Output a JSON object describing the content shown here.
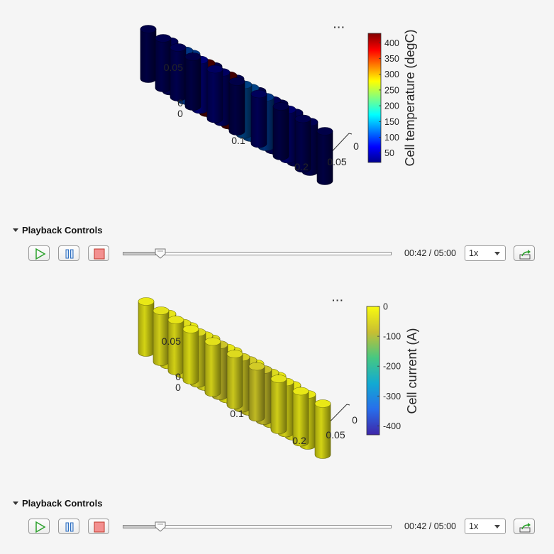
{
  "panels": [
    {
      "id": "temperature",
      "figure": {
        "more_icon": "ellipsis-icon",
        "z_ticks": [
          "0.05",
          "0"
        ],
        "x_ticks": [
          "0",
          "0.1",
          "0.2"
        ],
        "y_ticks": [
          "0",
          "0.05"
        ],
        "colorbar_label": "Cell temperature (degC)",
        "colorbar_ticks": [
          "400",
          "350",
          "300",
          "250",
          "200",
          "150",
          "100",
          "50"
        ],
        "colormap": "jet",
        "cell_values": [
          [
            20,
            30,
            25,
            20
          ],
          [
            40,
            60,
            110,
            30
          ],
          [
            20,
            40,
            430,
            110
          ],
          [
            35,
            120,
            430,
            20
          ],
          [
            20,
            110,
            120,
            25
          ],
          [
            25,
            50,
            30,
            20
          ],
          [
            20,
            30,
            25,
            20
          ]
        ]
      },
      "playback": {
        "header": "Playback Controls",
        "play_icon": "play-icon",
        "pause_icon": "pause-icon",
        "stop_icon": "stop-icon",
        "progress": 0.14,
        "time": "00:42 / 05:00",
        "speed": "1x",
        "export_icon": "export-icon"
      }
    },
    {
      "id": "current",
      "figure": {
        "more_icon": "ellipsis-icon",
        "z_ticks": [
          "0.05",
          "0"
        ],
        "x_ticks": [
          "0",
          "0.1",
          "0.2"
        ],
        "y_ticks": [
          "0",
          "0.05"
        ],
        "colorbar_label": "Cell current (A)",
        "colorbar_ticks": [
          "0",
          "-100",
          "-200",
          "-300",
          "-400"
        ],
        "colormap": "parula",
        "cell_values": [
          [
            -20,
            -25,
            -30,
            -20
          ],
          [
            -30,
            -40,
            -35,
            -25
          ],
          [
            -40,
            -70,
            -30,
            -20
          ],
          [
            -60,
            -55,
            -20,
            -40
          ],
          [
            -30,
            -70,
            -60,
            -30
          ],
          [
            -20,
            -25,
            -40,
            -20
          ],
          [
            -20,
            -20,
            -25,
            -20
          ]
        ]
      },
      "playback": {
        "header": "Playback Controls",
        "play_icon": "play-icon",
        "pause_icon": "pause-icon",
        "stop_icon": "stop-icon",
        "progress": 0.14,
        "time": "00:42 / 05:00",
        "speed": "1x",
        "export_icon": "export-icon"
      }
    }
  ]
}
